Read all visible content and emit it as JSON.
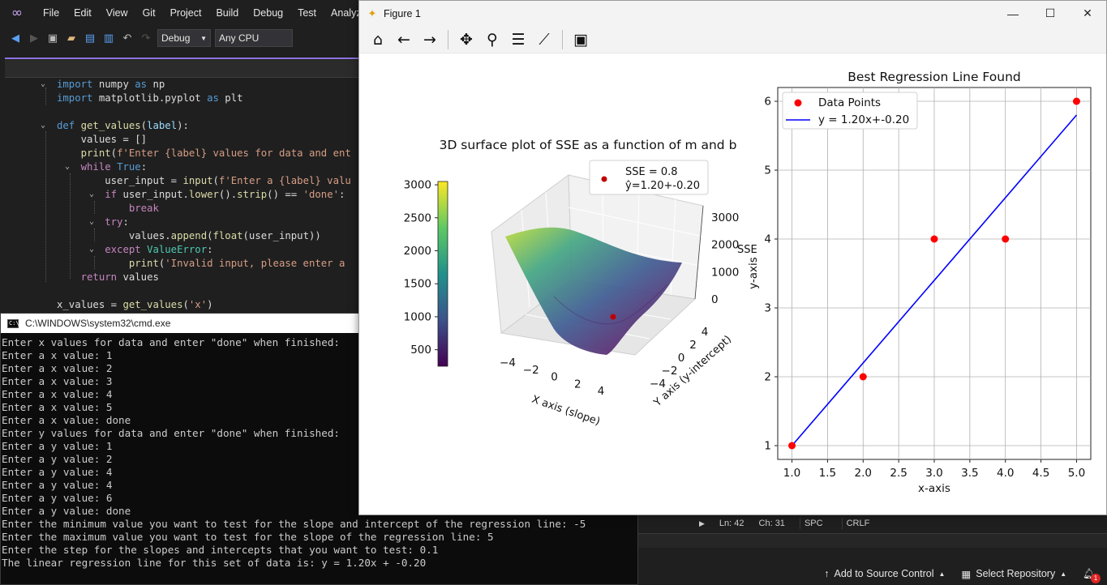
{
  "vs": {
    "menu": [
      "File",
      "Edit",
      "View",
      "Git",
      "Project",
      "Build",
      "Debug",
      "Test",
      "Analyze"
    ],
    "toolbar": {
      "config": "Debug",
      "platform": "Any CPU"
    },
    "code": [
      "import numpy as np",
      "import matplotlib.pyplot as plt",
      "",
      "def get_values(label):",
      "    values = []",
      "    print(f'Enter {label} values for data and ent",
      "    while True:",
      "        user_input = input(f'Enter a {label} valu",
      "        if user_input.lower().strip() == 'done':",
      "            break",
      "        try:",
      "            values.append(float(user_input))",
      "        except ValueError:",
      "            print('Invalid input, please enter a",
      "    return values",
      "",
      "x_values = get_values('x')"
    ],
    "status": {
      "line": "Ln: 42",
      "col": "Ch: 31",
      "spc": "SPC",
      "crlf": "CRLF"
    },
    "statusbar": {
      "source_control": "Add to Source Control",
      "repository": "Select Repository",
      "notifications": "1"
    }
  },
  "cmd": {
    "title": "C:\\WINDOWS\\system32\\cmd.exe",
    "lines": [
      "Enter x values for data and enter \"done\" when finished:",
      "Enter a x value: 1",
      "Enter a x value: 2",
      "Enter a x value: 3",
      "Enter a x value: 4",
      "Enter a x value: 5",
      "Enter a x value: done",
      "Enter y values for data and enter \"done\" when finished:",
      "Enter a y value: 1",
      "Enter a y value: 2",
      "Enter a y value: 4",
      "Enter a y value: 4",
      "Enter a y value: 6",
      "Enter a y value: done",
      "Enter the minimum value you want to test for the slope and intercept of the regression line: -5",
      "Enter the maximum value you want to test for the slope of the regression line: 5",
      "Enter the step for the slopes and intercepts that you want to test: 0.1",
      "The linear regression line for this set of data is: y = 1.20x + -0.20"
    ]
  },
  "figure": {
    "title": "Figure 1",
    "icons": [
      "home-icon",
      "back-icon",
      "forward-icon",
      "pan-icon",
      "zoom-icon",
      "subplots-icon",
      "axes-edit-icon",
      "save-icon"
    ]
  },
  "chart_data": [
    {
      "type": "surface",
      "title": "3D surface plot of SSE as a function of m and b",
      "xlabel": "X axis (slope)",
      "ylabel": "Y axis (y-intercept)",
      "zlabel": "SSE",
      "x_ticks": [
        "−4",
        "−2",
        "0",
        "2",
        "4"
      ],
      "y_ticks": [
        "−4",
        "−2",
        "0",
        "2",
        "4"
      ],
      "z_ticks": [
        "0",
        "1000",
        "2000",
        "3000"
      ],
      "colorbar_ticks": [
        "500",
        "1000",
        "1500",
        "2000",
        "2500",
        "3000"
      ],
      "colormap": "viridis",
      "legend": {
        "marker_label": "SSE = 0.8",
        "line2": "ŷ=1.20+-0.20"
      },
      "best_point": {
        "m": 1.2,
        "b": -0.2,
        "sse": 0.8
      }
    },
    {
      "type": "scatter",
      "title": "Best Regression Line Found",
      "xlabel": "x-axis",
      "ylabel": "y-axis",
      "x": [
        1,
        2,
        3,
        4,
        5
      ],
      "y": [
        1,
        2,
        4,
        4,
        6
      ],
      "line": {
        "slope": 1.2,
        "intercept": -0.2,
        "label": "y = 1.20x+-0.20"
      },
      "scatter_label": "Data Points",
      "xlim": [
        0.8,
        5.2
      ],
      "ylim": [
        0.8,
        6.2
      ],
      "x_ticks": [
        "1.0",
        "1.5",
        "2.0",
        "2.5",
        "3.0",
        "3.5",
        "4.0",
        "4.5",
        "5.0"
      ],
      "y_ticks": [
        "1",
        "2",
        "3",
        "4",
        "5",
        "6"
      ],
      "grid": true,
      "legend_position": "top-left",
      "colors": {
        "points": "#ff0000",
        "line": "#0000ff"
      }
    }
  ]
}
